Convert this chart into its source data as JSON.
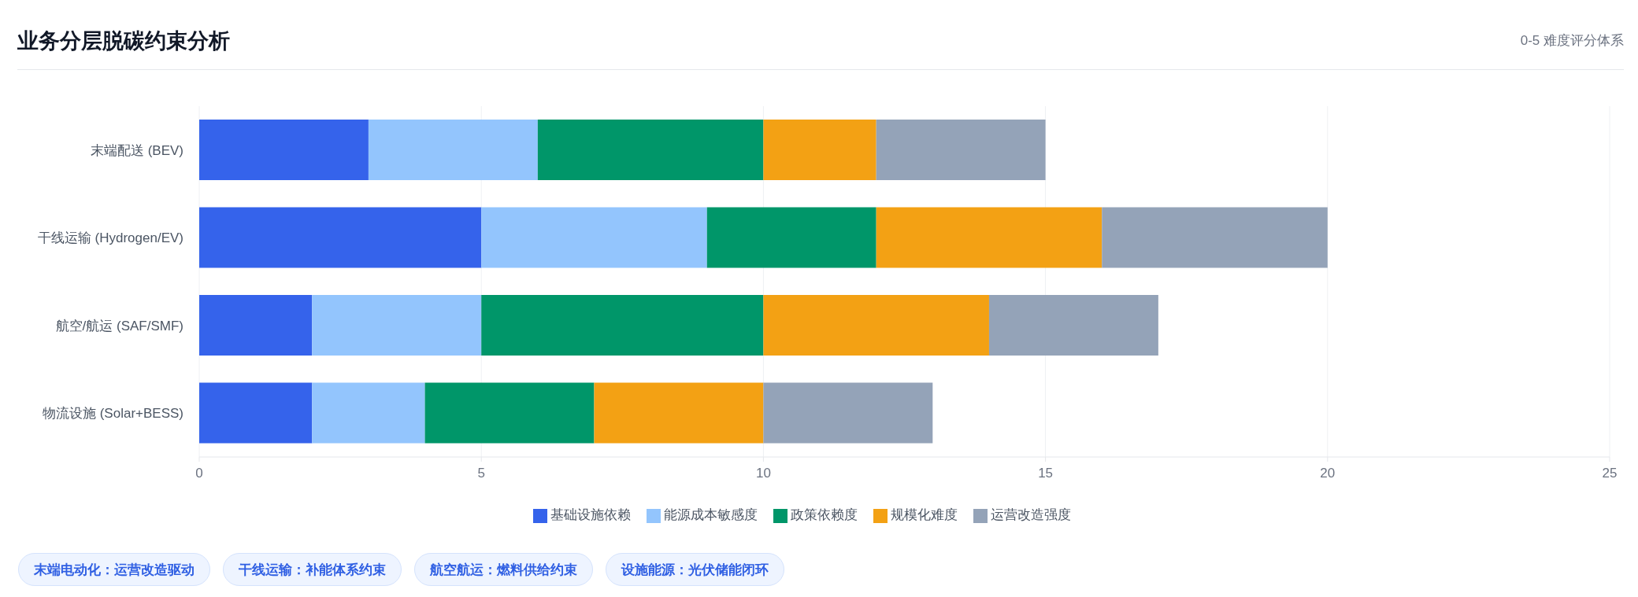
{
  "chart_data": {
    "type": "bar",
    "orientation": "horizontal",
    "stacked": true,
    "title": "业务分层脱碳约束分析",
    "subtitle": "0-5 难度评分体系",
    "categories": [
      "末端配送 (BEV)",
      "干线运输 (Hydrogen/EV)",
      "航空/航运 (SAF/SMF)",
      "物流设施 (Solar+BESS)"
    ],
    "series": [
      {
        "name": "基础设施依赖",
        "color": "#3563eb",
        "values": [
          3,
          5,
          2,
          2
        ]
      },
      {
        "name": "能源成本敏感度",
        "color": "#93c5fd",
        "values": [
          3,
          4,
          3,
          2
        ]
      },
      {
        "name": "政策依赖度",
        "color": "#009669",
        "values": [
          4,
          3,
          5,
          3
        ]
      },
      {
        "name": "规模化难度",
        "color": "#f3a114",
        "values": [
          2,
          4,
          4,
          3
        ]
      },
      {
        "name": "运营改造强度",
        "color": "#94a3b8",
        "values": [
          3,
          4,
          3,
          3
        ]
      }
    ],
    "xlim": [
      0,
      25
    ],
    "xticks": [
      0,
      5,
      10,
      15,
      20,
      25
    ],
    "grid": "x",
    "legend": "bottom",
    "annotations": [
      "末端电动化：运营改造驱动",
      "干线运输：补能体系约束",
      "航空航运：燃料供给约束",
      "设施能源：光伏储能闭环"
    ]
  }
}
